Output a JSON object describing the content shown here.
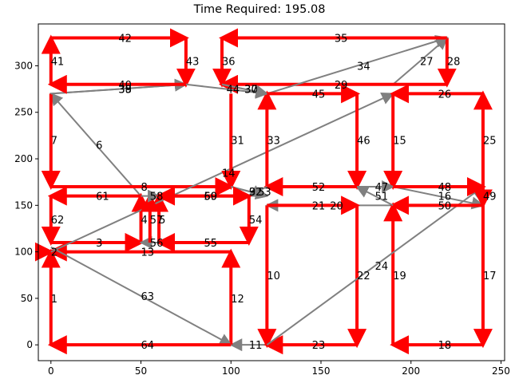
{
  "chart_data": {
    "type": "line",
    "title": "Time Required: 195.08",
    "xlabel": "",
    "ylabel": "",
    "xlim": [
      -7,
      252
    ],
    "ylim": [
      -17,
      345
    ],
    "xticks": [
      0,
      50,
      100,
      150,
      200,
      250
    ],
    "yticks": [
      0,
      50,
      100,
      150,
      200,
      250,
      300
    ],
    "grid": false,
    "colors": {
      "red": "#ff0000",
      "gray": "#808080"
    },
    "edges": [
      {
        "label": "1",
        "color": "red",
        "from": [
          0,
          0
        ],
        "to": [
          0,
          100
        ]
      },
      {
        "label": "2",
        "color": "red",
        "from": [
          0,
          100
        ],
        "to": [
          0,
          100
        ]
      },
      {
        "label": "3",
        "color": "red",
        "from": [
          0,
          110
        ],
        "to": [
          50,
          110
        ]
      },
      {
        "label": "4",
        "color": "red",
        "from": [
          50,
          110
        ],
        "to": [
          50,
          160
        ]
      },
      {
        "label": "5",
        "color": "red",
        "from": [
          60,
          110
        ],
        "to": [
          60,
          160
        ]
      },
      {
        "label": "6",
        "color": "gray",
        "from": [
          50,
          160
        ],
        "to": [
          0,
          270
        ]
      },
      {
        "label": "7",
        "color": "red",
        "from": [
          0,
          270
        ],
        "to": [
          0,
          170
        ]
      },
      {
        "label": "8",
        "color": "red",
        "from": [
          0,
          170
        ],
        "to": [
          100,
          170
        ]
      },
      {
        "label": "9",
        "color": "gray",
        "from": [
          100,
          170
        ],
        "to": [
          120,
          160
        ]
      },
      {
        "label": "10",
        "color": "red",
        "from": [
          120,
          150
        ],
        "to": [
          120,
          0
        ]
      },
      {
        "label": "11",
        "color": "gray",
        "from": [
          120,
          0
        ],
        "to": [
          100,
          0
        ]
      },
      {
        "label": "12",
        "color": "red",
        "from": [
          100,
          0
        ],
        "to": [
          100,
          100
        ]
      },
      {
        "label": "13",
        "color": "red",
        "from": [
          100,
          100
        ],
        "to": [
          0,
          100
        ]
      },
      {
        "label": "14",
        "color": "gray",
        "from": [
          0,
          100
        ],
        "to": [
          190,
          270
        ]
      },
      {
        "label": "15",
        "color": "red",
        "from": [
          190,
          270
        ],
        "to": [
          190,
          170
        ]
      },
      {
        "label": "16",
        "color": "gray",
        "from": [
          190,
          170
        ],
        "to": [
          240,
          150
        ]
      },
      {
        "label": "17",
        "color": "red",
        "from": [
          240,
          150
        ],
        "to": [
          240,
          0
        ]
      },
      {
        "label": "18",
        "color": "red",
        "from": [
          240,
          0
        ],
        "to": [
          190,
          0
        ]
      },
      {
        "label": "19",
        "color": "red",
        "from": [
          190,
          0
        ],
        "to": [
          190,
          150
        ]
      },
      {
        "label": "20",
        "color": "gray",
        "from": [
          190,
          150
        ],
        "to": [
          120,
          150
        ]
      },
      {
        "label": "21",
        "color": "red",
        "from": [
          120,
          150
        ],
        "to": [
          170,
          150
        ]
      },
      {
        "label": "22",
        "color": "red",
        "from": [
          170,
          150
        ],
        "to": [
          170,
          0
        ]
      },
      {
        "label": "23",
        "color": "red",
        "from": [
          170,
          0
        ],
        "to": [
          120,
          0
        ]
      },
      {
        "label": "24",
        "color": "gray",
        "from": [
          120,
          0
        ],
        "to": [
          240,
          170
        ]
      },
      {
        "label": "25",
        "color": "red",
        "from": [
          240,
          170
        ],
        "to": [
          240,
          270
        ]
      },
      {
        "label": "26",
        "color": "red",
        "from": [
          240,
          270
        ],
        "to": [
          190,
          270
        ]
      },
      {
        "label": "27",
        "color": "gray",
        "from": [
          190,
          280
        ],
        "to": [
          220,
          330
        ]
      },
      {
        "label": "28",
        "color": "red",
        "from": [
          220,
          330
        ],
        "to": [
          220,
          280
        ]
      },
      {
        "label": "29",
        "color": "red",
        "from": [
          220,
          280
        ],
        "to": [
          95,
          280
        ]
      },
      {
        "label": "30",
        "color": "gray",
        "from": [
          95,
          280
        ],
        "to": [
          120,
          270
        ]
      },
      {
        "label": "31",
        "color": "red",
        "from": [
          100,
          270
        ],
        "to": [
          100,
          170
        ]
      },
      {
        "label": "32",
        "color": "gray",
        "from": [
          100,
          170
        ],
        "to": [
          120,
          160
        ]
      },
      {
        "label": "33",
        "color": "red",
        "from": [
          120,
          170
        ],
        "to": [
          120,
          270
        ]
      },
      {
        "label": "34",
        "color": "gray",
        "from": [
          120,
          270
        ],
        "to": [
          220,
          330
        ]
      },
      {
        "label": "35",
        "color": "red",
        "from": [
          220,
          330
        ],
        "to": [
          95,
          330
        ]
      },
      {
        "label": "36",
        "color": "red",
        "from": [
          95,
          330
        ],
        "to": [
          95,
          280
        ]
      },
      {
        "label": "37",
        "color": "gray",
        "from": [
          95,
          280
        ],
        "to": [
          120,
          270
        ]
      },
      {
        "label": "38",
        "color": "gray",
        "from": [
          0,
          270
        ],
        "to": [
          75,
          280
        ]
      },
      {
        "label": "39",
        "color": "gray",
        "from": [
          0,
          270
        ],
        "to": [
          75,
          280
        ]
      },
      {
        "label": "40",
        "color": "red",
        "from": [
          75,
          280
        ],
        "to": [
          0,
          280
        ]
      },
      {
        "label": "41",
        "color": "red",
        "from": [
          0,
          280
        ],
        "to": [
          0,
          330
        ]
      },
      {
        "label": "42",
        "color": "red",
        "from": [
          0,
          330
        ],
        "to": [
          75,
          330
        ]
      },
      {
        "label": "43",
        "color": "red",
        "from": [
          75,
          330
        ],
        "to": [
          75,
          280
        ]
      },
      {
        "label": "44",
        "color": "gray",
        "from": [
          75,
          280
        ],
        "to": [
          120,
          270
        ]
      },
      {
        "label": "45",
        "color": "red",
        "from": [
          120,
          270
        ],
        "to": [
          170,
          270
        ]
      },
      {
        "label": "46",
        "color": "red",
        "from": [
          170,
          270
        ],
        "to": [
          170,
          170
        ]
      },
      {
        "label": "47",
        "color": "gray",
        "from": [
          170,
          170
        ],
        "to": [
          190,
          170
        ]
      },
      {
        "label": "48",
        "color": "red",
        "from": [
          190,
          170
        ],
        "to": [
          240,
          170
        ]
      },
      {
        "label": "49",
        "color": "red",
        "from": [
          240,
          170
        ],
        "to": [
          240,
          150
        ]
      },
      {
        "label": "50",
        "color": "red",
        "from": [
          240,
          150
        ],
        "to": [
          190,
          150
        ]
      },
      {
        "label": "51",
        "color": "gray",
        "from": [
          190,
          150
        ],
        "to": [
          170,
          170
        ]
      },
      {
        "label": "52",
        "color": "red",
        "from": [
          170,
          170
        ],
        "to": [
          120,
          170
        ]
      },
      {
        "label": "53",
        "color": "gray",
        "from": [
          120,
          170
        ],
        "to": [
          110,
          160
        ]
      },
      {
        "label": "54",
        "color": "red",
        "from": [
          110,
          160
        ],
        "to": [
          110,
          110
        ]
      },
      {
        "label": "55",
        "color": "red",
        "from": [
          110,
          110
        ],
        "to": [
          60,
          110
        ]
      },
      {
        "label": "56",
        "color": "gray",
        "from": [
          60,
          110
        ],
        "to": [
          50,
          110
        ]
      },
      {
        "label": "57",
        "color": "red",
        "from": [
          55,
          110
        ],
        "to": [
          55,
          160
        ]
      },
      {
        "label": "58",
        "color": "gray",
        "from": [
          50,
          160
        ],
        "to": [
          60,
          160
        ]
      },
      {
        "label": "59",
        "color": "red",
        "from": [
          60,
          160
        ],
        "to": [
          110,
          160
        ]
      },
      {
        "label": "60",
        "color": "red",
        "from": [
          110,
          160
        ],
        "to": [
          60,
          160
        ]
      },
      {
        "label": "61",
        "color": "red",
        "from": [
          50,
          160
        ],
        "to": [
          0,
          160
        ]
      },
      {
        "label": "62",
        "color": "red",
        "from": [
          0,
          160
        ],
        "to": [
          0,
          110
        ]
      },
      {
        "label": "63",
        "color": "gray",
        "from": [
          0,
          105
        ],
        "to": [
          100,
          0
        ]
      },
      {
        "label": "64",
        "color": "red",
        "from": [
          100,
          0
        ],
        "to": [
          0,
          0
        ]
      }
    ]
  }
}
